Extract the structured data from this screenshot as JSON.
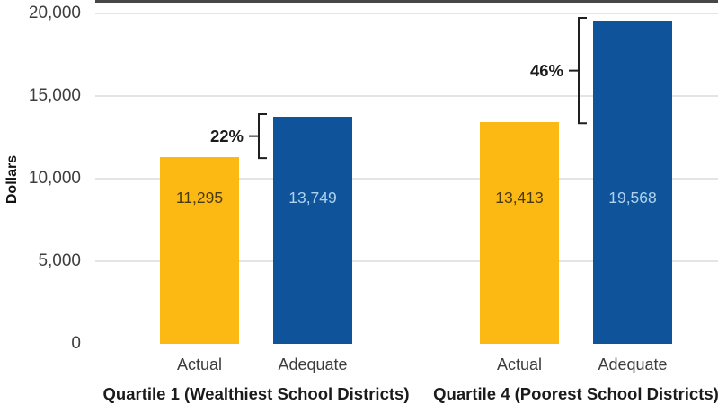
{
  "chart_data": {
    "type": "bar",
    "title": "",
    "ylabel": "Dollars",
    "xlabel": "",
    "ylim": [
      0,
      20000
    ],
    "yticks": [
      0,
      5000,
      10000,
      15000,
      20000
    ],
    "ytick_labels": [
      "0",
      "5,000",
      "10,000",
      "15,000",
      "20,000"
    ],
    "grid": "horizontal",
    "legend": "none",
    "colors": {
      "actual_bar": "#FCB813",
      "adequate_bar": "#0F549B",
      "actual_value_text": "#4A3A10",
      "adequate_value_text": "#AED2EE",
      "gridline": "#E4E4E4",
      "axis_line": "#474747",
      "bracket": "#1F1F1F"
    },
    "groups": [
      {
        "label": "Quartile 1 (Wealthiest School Districts)",
        "bars": [
          {
            "category": "Actual",
            "value": 11295,
            "value_label": "11,295",
            "series": "actual"
          },
          {
            "category": "Adequate",
            "value": 13749,
            "value_label": "13,749",
            "series": "adequate"
          }
        ],
        "annotation": {
          "text": "22%",
          "from_category": "Actual",
          "to_category": "Adequate"
        }
      },
      {
        "label": "Quartile 4 (Poorest School Districts)",
        "bars": [
          {
            "category": "Actual",
            "value": 13413,
            "value_label": "13,413",
            "series": "actual"
          },
          {
            "category": "Adequate",
            "value": 19568,
            "value_label": "19,568",
            "series": "adequate"
          }
        ],
        "annotation": {
          "text": "46%",
          "from_category": "Actual",
          "to_category": "Adequate"
        }
      }
    ]
  }
}
